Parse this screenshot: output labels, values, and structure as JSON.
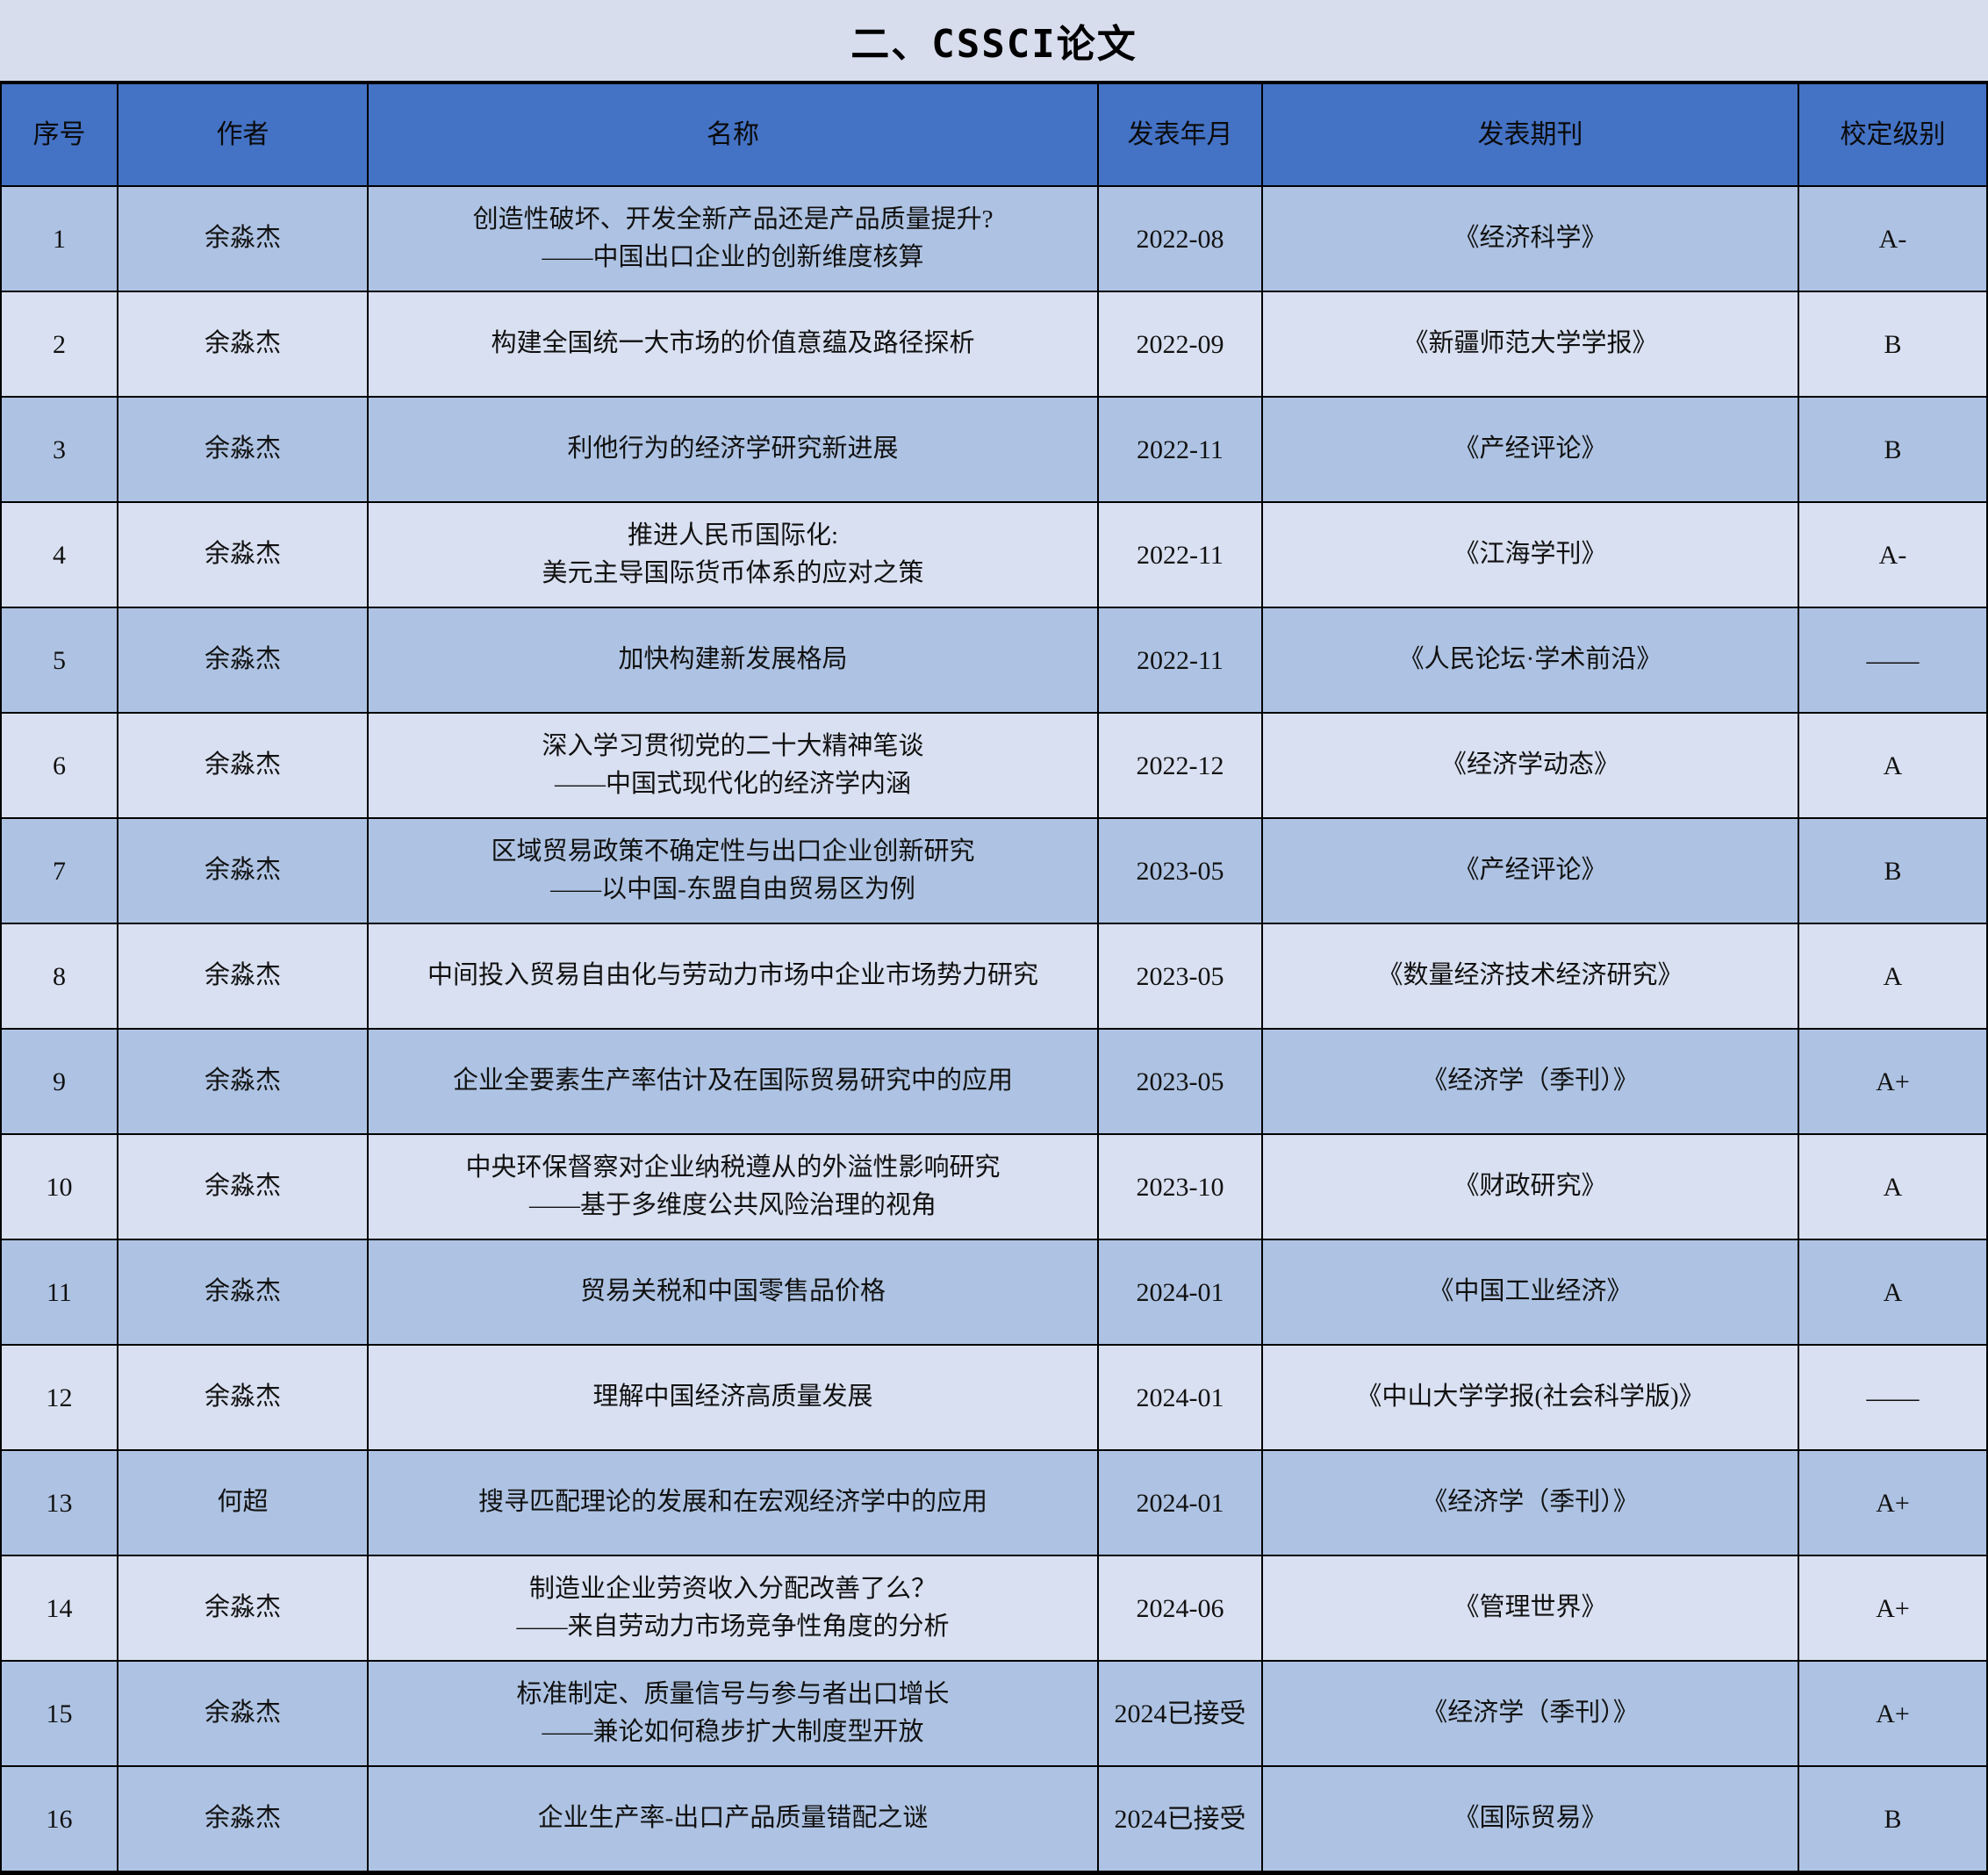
{
  "title": "二、CSSCI论文",
  "columns": [
    "序号",
    "作者",
    "名称",
    "发表年月",
    "发表期刊",
    "校定级别"
  ],
  "colors": {
    "header_bg": "#4472c4",
    "row_dark": "#aec3e3",
    "row_light": "#d9e0f1",
    "page_bg": "#d8ddee",
    "border": "#000000",
    "text": "#111111"
  },
  "rows": [
    {
      "no": "1",
      "author": "余淼杰",
      "name": "创造性破坏、开发全新产品还是产品质量提升?\n——中国出口企业的创新维度核算",
      "date": "2022-08",
      "journal": "《经济科学》",
      "grade": "A-",
      "shade": "dark"
    },
    {
      "no": "2",
      "author": "余淼杰",
      "name": "构建全国统一大市场的价值意蕴及路径探析",
      "date": "2022-09",
      "journal": "《新疆师范大学学报》",
      "grade": "B",
      "shade": "light"
    },
    {
      "no": "3",
      "author": "余淼杰",
      "name": "利他行为的经济学研究新进展",
      "date": "2022-11",
      "journal": "《产经评论》",
      "grade": "B",
      "shade": "dark"
    },
    {
      "no": "4",
      "author": "余淼杰",
      "name": "推进人民币国际化:\n美元主导国际货币体系的应对之策",
      "date": "2022-11",
      "journal": "《江海学刊》",
      "grade": "A-",
      "shade": "light"
    },
    {
      "no": "5",
      "author": "余淼杰",
      "name": "加快构建新发展格局",
      "date": "2022-11",
      "journal": "《人民论坛·学术前沿》",
      "grade": "——",
      "shade": "dark"
    },
    {
      "no": "6",
      "author": "余淼杰",
      "name": "深入学习贯彻党的二十大精神笔谈\n——中国式现代化的经济学内涵",
      "date": "2022-12",
      "journal": "《经济学动态》",
      "grade": "A",
      "shade": "light"
    },
    {
      "no": "7",
      "author": "余淼杰",
      "name": "区域贸易政策不确定性与出口企业创新研究\n——以中国-东盟自由贸易区为例",
      "date": "2023-05",
      "journal": "《产经评论》",
      "grade": "B",
      "shade": "dark"
    },
    {
      "no": "8",
      "author": "余淼杰",
      "name": "中间投入贸易自由化与劳动力市场中企业市场势力研究",
      "date": "2023-05",
      "journal": "《数量经济技术经济研究》",
      "grade": "A",
      "shade": "light"
    },
    {
      "no": "9",
      "author": "余淼杰",
      "name": "企业全要素生产率估计及在国际贸易研究中的应用",
      "date": "2023-05",
      "journal": "《经济学（季刊）》",
      "grade": "A+",
      "shade": "dark"
    },
    {
      "no": "10",
      "author": "余淼杰",
      "name": "中央环保督察对企业纳税遵从的外溢性影响研究\n——基于多维度公共风险治理的视角",
      "date": "2023-10",
      "journal": "《财政研究》",
      "grade": "A",
      "shade": "light"
    },
    {
      "no": "11",
      "author": "余淼杰",
      "name": "贸易关税和中国零售品价格",
      "date": "2024-01",
      "journal": "《中国工业经济》",
      "grade": "A",
      "shade": "dark"
    },
    {
      "no": "12",
      "author": "余淼杰",
      "name": "理解中国经济高质量发展",
      "date": "2024-01",
      "journal": "《中山大学学报(社会科学版)》",
      "grade": "——",
      "shade": "light"
    },
    {
      "no": "13",
      "author": "何超",
      "name": "搜寻匹配理论的发展和在宏观经济学中的应用",
      "date": "2024-01",
      "journal": "《经济学（季刊）》",
      "grade": "A+",
      "shade": "dark"
    },
    {
      "no": "14",
      "author": "余淼杰",
      "name": "制造业企业劳资收入分配改善了么？\n——来自劳动力市场竞争性角度的分析",
      "date": "2024-06",
      "journal": "《管理世界》",
      "grade": "A+",
      "shade": "light"
    },
    {
      "no": "15",
      "author": "余淼杰",
      "name": "标准制定、质量信号与参与者出口增长\n——兼论如何稳步扩大制度型开放",
      "date": "2024已接受",
      "journal": "《经济学（季刊）》",
      "grade": "A+",
      "shade": "dark"
    },
    {
      "no": "16",
      "author": "余淼杰",
      "name": "企业生产率-出口产品质量错配之谜",
      "date": "2024已接受",
      "journal": "《国际贸易》",
      "grade": "B",
      "shade": "dark"
    }
  ]
}
